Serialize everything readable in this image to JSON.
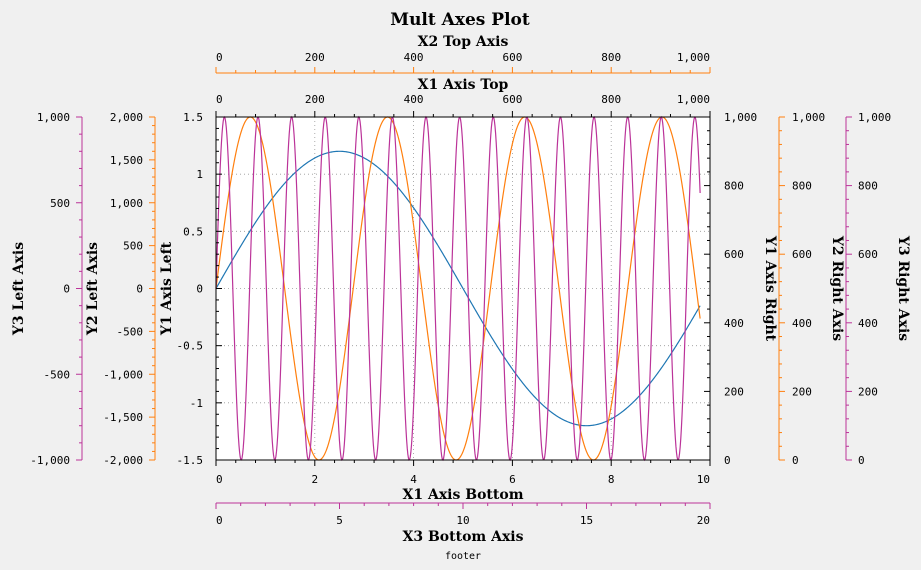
{
  "chart_data": {
    "type": "line",
    "title": "Mult Axes Plot",
    "footer": "footer",
    "grid": true,
    "colors": {
      "plot_background": "#ffffff",
      "window_background": "#f0f0f0",
      "black": "#000000",
      "orange": "#ff7f0e",
      "purple": "#bb3399",
      "blue": "#1f77b4",
      "grid": "#999999"
    },
    "axes": {
      "x1_bottom": {
        "label": "X1 Axis Bottom",
        "range": [
          0,
          10
        ],
        "ticks": [
          "0",
          "2",
          "4",
          "6",
          "8",
          "10"
        ],
        "color": "black"
      },
      "x1_top": {
        "label": "X1 Axis Top",
        "range": [
          0,
          1000
        ],
        "ticks": [
          "0",
          "200",
          "400",
          "600",
          "800",
          "1,000"
        ],
        "color": "black"
      },
      "x2_top": {
        "label": "X2 Top Axis",
        "range": [
          0,
          1000
        ],
        "ticks": [
          "0",
          "200",
          "400",
          "600",
          "800",
          "1,000"
        ],
        "color": "orange"
      },
      "x3_bottom": {
        "label": "X3 Bottom Axis",
        "range": [
          0,
          20
        ],
        "ticks": [
          "0",
          "5",
          "10",
          "15",
          "20"
        ],
        "color": "purple"
      },
      "y1_left": {
        "label": "Y1 Axis Left",
        "range": [
          -1.5,
          1.5
        ],
        "ticks": [
          "-1.5",
          "-1",
          "-0.5",
          "0",
          "0.5",
          "1",
          "1.5"
        ],
        "color": "black"
      },
      "y2_left": {
        "label": "Y2 Left Axis",
        "range": [
          -2000,
          2000
        ],
        "ticks": [
          "-2,000",
          "-1,500",
          "-1,000",
          "-500",
          "0",
          "500",
          "1,000",
          "1,500",
          "2,000"
        ],
        "color": "orange"
      },
      "y3_left": {
        "label": "Y3 Left Axis",
        "range": [
          -1000,
          1000
        ],
        "ticks": [
          "-1,000",
          "-500",
          "0",
          "500",
          "1,000"
        ],
        "color": "purple"
      },
      "y1_right": {
        "label": "Y1 Axis Right",
        "range": [
          0,
          1000
        ],
        "ticks": [
          "0",
          "200",
          "400",
          "600",
          "800",
          "1,000"
        ],
        "color": "black"
      },
      "y2_right": {
        "label": "Y2 Right Axis",
        "range": [
          0,
          1000
        ],
        "ticks": [
          "0",
          "200",
          "400",
          "600",
          "800",
          "1,000"
        ],
        "color": "orange"
      },
      "y3_right": {
        "label": "Y3 Right Axis",
        "range": [
          0,
          1000
        ],
        "ticks": [
          "0",
          "200",
          "400",
          "600",
          "800",
          "1,000"
        ],
        "color": "purple"
      }
    },
    "series": [
      {
        "color": "blue",
        "x_axis": "x1_bottom",
        "y_axis": "y1_left",
        "function": "sin",
        "amplitude": 1.2,
        "frequency": 0.1,
        "x_range": [
          0,
          9.8
        ]
      },
      {
        "color": "orange",
        "x_axis": "x1_bottom",
        "y_axis": "y1_left",
        "function": "sin",
        "amplitude": 1.5,
        "frequency": 0.36,
        "x_range": [
          0,
          9.8
        ]
      },
      {
        "color": "purple",
        "x_axis": "x1_bottom",
        "y_axis": "y1_left",
        "function": "sin",
        "amplitude": 1.5,
        "frequency": 1.47,
        "x_range": [
          0,
          9.8
        ]
      }
    ]
  }
}
